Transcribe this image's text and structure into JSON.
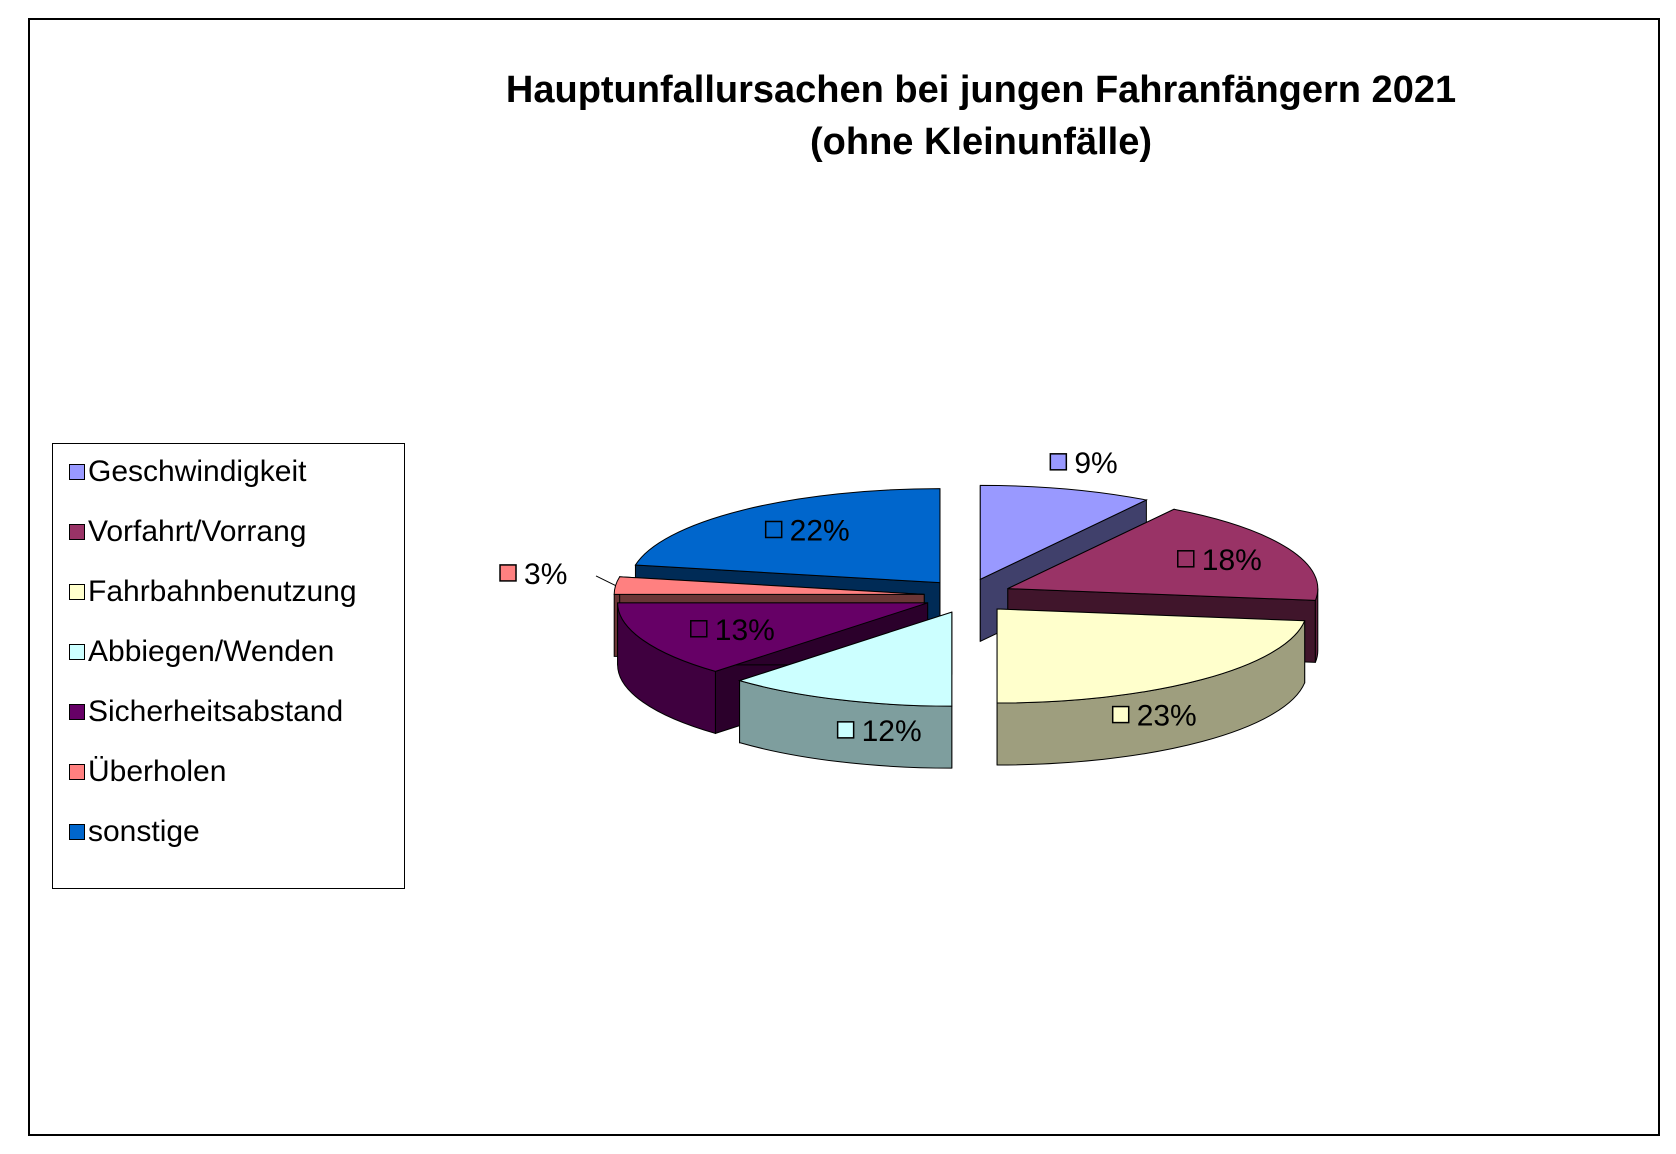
{
  "chart_data": {
    "type": "pie",
    "title": "Hauptunfallursachen bei jungen Fahranfängern 2021",
    "subtitle": "(ohne Kleinunfälle)",
    "legend_position": "left",
    "label_format": "percent",
    "series": [
      {
        "label": "Geschwindigkeit",
        "value": 9,
        "label_text": "9%",
        "color": "#9999FF"
      },
      {
        "label": "Vorfahrt/Vorrang",
        "value": 18,
        "label_text": "18%",
        "color": "#993366"
      },
      {
        "label": "Fahrbahnbenutzung",
        "value": 23,
        "label_text": "23%",
        "color": "#FFFFCC"
      },
      {
        "label": "Abbiegen/Wenden",
        "value": 12,
        "label_text": "12%",
        "color": "#CCFFFF"
      },
      {
        "label": "Sicherheitsabstand",
        "value": 13,
        "label_text": "13%",
        "color": "#660066"
      },
      {
        "label": "Überholen",
        "value": 3,
        "label_text": "3%",
        "color": "#FF8080"
      },
      {
        "label": "sonstige",
        "value": 22,
        "label_text": "22%",
        "color": "#0066CC"
      }
    ]
  }
}
